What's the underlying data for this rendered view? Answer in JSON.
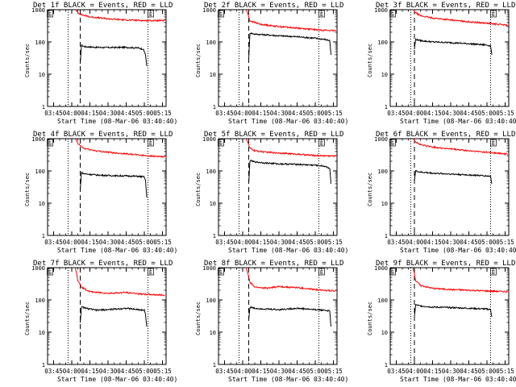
{
  "chart_data": [
    {
      "type": "line",
      "title": "Det 1f BLACK = Events, RED = LLD",
      "xlabel": "Start Time (08-Mar-06 03:40:40)",
      "ylabel": "Counts/sec",
      "yscale": "log",
      "ylim": [
        1,
        1000
      ],
      "xlim": [
        "03:40",
        "05:18"
      ],
      "x_ticks": [
        "03:45",
        "04:00",
        "04:15",
        "04:30",
        "04:45",
        "05:00",
        "05:15"
      ],
      "y_ticks": [
        "1",
        "10",
        "100",
        "1000"
      ],
      "markers": {
        "left": "S",
        "right": "E"
      },
      "vlines": {
        "dotted": [
          "03:57",
          "05:03"
        ],
        "dashed": "04:07"
      },
      "series": [
        {
          "color": "#000000",
          "points": [
            [
              "04:07",
              20
            ],
            [
              "04:08",
              80
            ],
            [
              "04:10",
              72
            ],
            [
              "04:20",
              68
            ],
            [
              "04:30",
              67
            ],
            [
              "04:45",
              68
            ],
            [
              "04:55",
              65
            ],
            [
              "04:59",
              60
            ],
            [
              "05:00",
              50
            ],
            [
              "05:01",
              40
            ],
            [
              "05:02",
              18
            ]
          ]
        },
        {
          "color": "#ff0000",
          "points": [
            [
              "04:03",
              1000
            ],
            [
              "04:05",
              800
            ],
            [
              "04:08",
              700
            ],
            [
              "04:15",
              600
            ],
            [
              "04:30",
              520
            ],
            [
              "04:45",
              480
            ],
            [
              "05:00",
              460
            ],
            [
              "05:17",
              460
            ]
          ]
        }
      ]
    },
    {
      "type": "line",
      "title": "Det 2f BLACK = Events, RED = LLD",
      "xlabel": "Start Time (08-Mar-06 03:40:40)",
      "ylabel": "Counts/sec",
      "yscale": "log",
      "ylim": [
        1,
        1000
      ],
      "xlim": [
        "03:40",
        "05:18"
      ],
      "x_ticks": [
        "03:45",
        "04:00",
        "04:15",
        "04:30",
        "04:45",
        "05:00",
        "05:15"
      ],
      "y_ticks": [
        "1",
        "10",
        "100",
        "1000"
      ],
      "markers": {
        "left": "S",
        "right": "E"
      },
      "vlines": {
        "dotted": [
          "03:57",
          "05:03"
        ],
        "dashed": "04:05"
      },
      "series": [
        {
          "color": "#000000",
          "points": [
            [
              "04:05",
              30
            ],
            [
              "04:06",
              190
            ],
            [
              "04:10",
              175
            ],
            [
              "04:20",
              165
            ],
            [
              "04:30",
              155
            ],
            [
              "04:45",
              145
            ],
            [
              "04:55",
              135
            ],
            [
              "05:00",
              130
            ],
            [
              "05:08",
              120
            ],
            [
              "05:12",
              110
            ],
            [
              "05:13",
              40
            ]
          ]
        },
        {
          "color": "#ff0000",
          "points": [
            [
              "04:03",
              1000
            ],
            [
              "04:06",
              450
            ],
            [
              "04:15",
              350
            ],
            [
              "04:30",
              300
            ],
            [
              "04:45",
              270
            ],
            [
              "05:00",
              240
            ],
            [
              "05:17",
              220
            ]
          ]
        }
      ]
    },
    {
      "type": "line",
      "title": "Det 3f BLACK = Events, RED = LLD",
      "xlabel": "Start Time (08-Mar-06 03:40:40)",
      "ylabel": "Counts/sec",
      "yscale": "log",
      "ylim": [
        1,
        1000
      ],
      "xlim": [
        "03:40",
        "05:18"
      ],
      "x_ticks": [
        "03:45",
        "04:00",
        "04:15",
        "04:30",
        "04:45",
        "05:00",
        "05:15"
      ],
      "y_ticks": [
        "1",
        "10",
        "100",
        "1000"
      ],
      "markers": {
        "left": "S",
        "right": "E"
      },
      "vlines": {
        "dotted": [
          "03:57",
          "05:03"
        ],
        "dashed": "04:00"
      },
      "series": [
        {
          "color": "#000000",
          "points": [
            [
              "04:00",
              60
            ],
            [
              "04:01",
              120
            ],
            [
              "04:05",
              110
            ],
            [
              "04:15",
              100
            ],
            [
              "04:30",
              95
            ],
            [
              "04:45",
              88
            ],
            [
              "05:00",
              80
            ],
            [
              "05:03",
              75
            ],
            [
              "05:04",
              40
            ]
          ]
        },
        {
          "color": "#ff0000",
          "points": [
            [
              "03:59",
              1000
            ],
            [
              "04:01",
              800
            ],
            [
              "04:05",
              650
            ],
            [
              "04:15",
              550
            ],
            [
              "04:30",
              480
            ],
            [
              "04:45",
              420
            ],
            [
              "05:00",
              380
            ],
            [
              "05:17",
              330
            ]
          ]
        }
      ]
    },
    {
      "type": "line",
      "title": "Det 4f BLACK = Events, RED = LLD",
      "xlabel": "Start Time (08-Mar-06 03:40:40)",
      "ylabel": "Counts/sec",
      "yscale": "log",
      "ylim": [
        1,
        1000
      ],
      "xlim": [
        "03:40",
        "05:18"
      ],
      "x_ticks": [
        "03:45",
        "04:00",
        "04:15",
        "04:30",
        "04:45",
        "05:00",
        "05:15"
      ],
      "y_ticks": [
        "1",
        "10",
        "100",
        "1000"
      ],
      "markers": {
        "left": "S",
        "right": "E"
      },
      "vlines": {
        "dotted": [
          "03:57",
          "05:03"
        ],
        "dashed": "04:07"
      },
      "series": [
        {
          "color": "#000000",
          "points": [
            [
              "04:07",
              25
            ],
            [
              "04:08",
              90
            ],
            [
              "04:10",
              82
            ],
            [
              "04:20",
              75
            ],
            [
              "04:30",
              72
            ],
            [
              "04:45",
              70
            ],
            [
              "04:55",
              68
            ],
            [
              "05:00",
              65
            ],
            [
              "05:01",
              50
            ],
            [
              "05:02",
              15
            ]
          ]
        },
        {
          "color": "#ff0000",
          "points": [
            [
              "04:03",
              1000
            ],
            [
              "04:05",
              700
            ],
            [
              "04:10",
              500
            ],
            [
              "04:20",
              420
            ],
            [
              "04:30",
              380
            ],
            [
              "04:45",
              340
            ],
            [
              "05:00",
              300
            ],
            [
              "05:17",
              270
            ]
          ]
        }
      ]
    },
    {
      "type": "line",
      "title": "Det 5f BLACK = Events, RED = LLD",
      "xlabel": "Start Time (08-Mar-06 03:40:40)",
      "ylabel": "Counts/sec",
      "yscale": "log",
      "ylim": [
        1,
        1000
      ],
      "xlim": [
        "03:40",
        "05:18"
      ],
      "x_ticks": [
        "03:45",
        "04:00",
        "04:15",
        "04:30",
        "04:45",
        "05:00",
        "05:15"
      ],
      "y_ticks": [
        "1",
        "10",
        "100",
        "1000"
      ],
      "markers": {
        "left": "S",
        "right": "E"
      },
      "vlines": {
        "dotted": [
          "03:57",
          "05:03"
        ],
        "dashed": "04:05"
      },
      "series": [
        {
          "color": "#000000",
          "points": [
            [
              "04:05",
              40
            ],
            [
              "04:06",
              210
            ],
            [
              "04:10",
              190
            ],
            [
              "04:20",
              175
            ],
            [
              "04:30",
              165
            ],
            [
              "04:45",
              160
            ],
            [
              "05:00",
              150
            ],
            [
              "05:08",
              140
            ],
            [
              "05:12",
              120
            ],
            [
              "05:13",
              40
            ]
          ]
        },
        {
          "color": "#ff0000",
          "points": [
            [
              "04:03",
              1000
            ],
            [
              "04:06",
              500
            ],
            [
              "04:10",
              420
            ],
            [
              "04:20",
              380
            ],
            [
              "04:30",
              360
            ],
            [
              "04:45",
              330
            ],
            [
              "05:00",
              300
            ],
            [
              "05:17",
              290
            ]
          ]
        }
      ]
    },
    {
      "type": "line",
      "title": "Det 6f BLACK = Events, RED = LLD",
      "xlabel": "Start Time (08-Mar-06 03:40:40)",
      "ylabel": "Counts/sec",
      "yscale": "log",
      "ylim": [
        1,
        1000
      ],
      "xlim": [
        "03:40",
        "05:18"
      ],
      "x_ticks": [
        "03:45",
        "04:00",
        "04:15",
        "04:30",
        "04:45",
        "05:00",
        "05:15"
      ],
      "y_ticks": [
        "1",
        "10",
        "100",
        "1000"
      ],
      "markers": {
        "left": "S",
        "right": "E"
      },
      "vlines": {
        "dotted": [
          "03:57",
          "05:03"
        ],
        "dashed": "04:00"
      },
      "series": [
        {
          "color": "#000000",
          "points": [
            [
              "04:00",
              50
            ],
            [
              "04:01",
              100
            ],
            [
              "04:05",
              92
            ],
            [
              "04:15",
              85
            ],
            [
              "04:30",
              80
            ],
            [
              "04:45",
              75
            ],
            [
              "05:00",
              70
            ],
            [
              "05:03",
              68
            ],
            [
              "05:04",
              40
            ]
          ]
        },
        {
          "color": "#ff0000",
          "points": [
            [
              "03:59",
              1000
            ],
            [
              "04:01",
              800
            ],
            [
              "04:05",
              650
            ],
            [
              "04:15",
              550
            ],
            [
              "04:30",
              480
            ],
            [
              "04:45",
              420
            ],
            [
              "05:00",
              380
            ],
            [
              "05:17",
              330
            ]
          ]
        }
      ]
    },
    {
      "type": "line",
      "title": "Det 7f BLACK = Events, RED = LLD",
      "xlabel": "Start Time (08-Mar-06 03:40:40)",
      "ylabel": "Counts/sec",
      "yscale": "log",
      "ylim": [
        1,
        1000
      ],
      "xlim": [
        "03:40",
        "05:18"
      ],
      "x_ticks": [
        "03:45",
        "04:00",
        "04:15",
        "04:30",
        "04:45",
        "05:00",
        "05:15"
      ],
      "y_ticks": [
        "1",
        "10",
        "100",
        "1000"
      ],
      "markers": {
        "left": "S",
        "right": "E"
      },
      "vlines": {
        "dotted": [
          "03:57",
          "05:03"
        ],
        "dashed": "04:07"
      },
      "series": [
        {
          "color": "#000000",
          "points": [
            [
              "04:07",
              20
            ],
            [
              "04:08",
              60
            ],
            [
              "04:12",
              55
            ],
            [
              "04:20",
              48
            ],
            [
              "04:30",
              50
            ],
            [
              "04:45",
              55
            ],
            [
              "04:55",
              50
            ],
            [
              "05:00",
              48
            ],
            [
              "05:01",
              35
            ],
            [
              "05:02",
              15
            ]
          ]
        },
        {
          "color": "#ff0000",
          "points": [
            [
              "04:03",
              1000
            ],
            [
              "04:05",
              400
            ],
            [
              "04:08",
              250
            ],
            [
              "04:15",
              180
            ],
            [
              "04:30",
              160
            ],
            [
              "04:45",
              170
            ],
            [
              "05:00",
              150
            ],
            [
              "05:17",
              140
            ]
          ]
        }
      ]
    },
    {
      "type": "line",
      "title": "Det 8f BLACK = Events, RED = LLD",
      "xlabel": "Start Time (08-Mar-06 03:40:40)",
      "ylabel": "Counts/sec",
      "yscale": "log",
      "ylim": [
        1,
        1000
      ],
      "xlim": [
        "03:40",
        "05:18"
      ],
      "x_ticks": [
        "03:45",
        "04:00",
        "04:15",
        "04:30",
        "04:45",
        "05:00",
        "05:15"
      ],
      "y_ticks": [
        "1",
        "10",
        "100",
        "1000"
      ],
      "markers": {
        "left": "S",
        "right": "E"
      },
      "vlines": {
        "dotted": [
          "03:57",
          "05:03"
        ],
        "dashed": "04:05"
      },
      "series": [
        {
          "color": "#000000",
          "points": [
            [
              "04:05",
              25
            ],
            [
              "04:06",
              60
            ],
            [
              "04:10",
              55
            ],
            [
              "04:20",
              52
            ],
            [
              "04:30",
              50
            ],
            [
              "04:45",
              55
            ],
            [
              "05:00",
              50
            ],
            [
              "05:08",
              48
            ],
            [
              "05:12",
              45
            ],
            [
              "05:13",
              15
            ]
          ]
        },
        {
          "color": "#ff0000",
          "points": [
            [
              "04:03",
              1000
            ],
            [
              "04:06",
              350
            ],
            [
              "04:10",
              250
            ],
            [
              "04:20",
              230
            ],
            [
              "04:30",
              260
            ],
            [
              "04:45",
              240
            ],
            [
              "05:00",
              210
            ],
            [
              "05:17",
              190
            ]
          ]
        }
      ]
    },
    {
      "type": "line",
      "title": "Det 9f BLACK = Events, RED = LLD",
      "xlabel": "Start Time (08-Mar-06 03:40:40)",
      "ylabel": "Counts/sec",
      "yscale": "log",
      "ylim": [
        1,
        1000
      ],
      "xlim": [
        "03:40",
        "05:18"
      ],
      "x_ticks": [
        "03:45",
        "04:00",
        "04:15",
        "04:30",
        "04:45",
        "05:00",
        "05:15"
      ],
      "y_ticks": [
        "1",
        "10",
        "100",
        "1000"
      ],
      "markers": {
        "left": "S",
        "right": "E"
      },
      "vlines": {
        "dotted": [
          "03:57",
          "05:03"
        ],
        "dashed": "04:00"
      },
      "series": [
        {
          "color": "#000000",
          "points": [
            [
              "04:00",
              30
            ],
            [
              "04:01",
              70
            ],
            [
              "04:05",
              65
            ],
            [
              "04:15",
              60
            ],
            [
              "04:30",
              58
            ],
            [
              "04:45",
              55
            ],
            [
              "05:00",
              52
            ],
            [
              "05:03",
              50
            ],
            [
              "05:04",
              30
            ]
          ]
        },
        {
          "color": "#ff0000",
          "points": [
            [
              "03:59",
              1000
            ],
            [
              "04:01",
              400
            ],
            [
              "04:05",
              280
            ],
            [
              "04:15",
              230
            ],
            [
              "04:30",
              210
            ],
            [
              "04:45",
              200
            ],
            [
              "05:00",
              190
            ],
            [
              "05:17",
              180
            ]
          ]
        }
      ]
    }
  ]
}
